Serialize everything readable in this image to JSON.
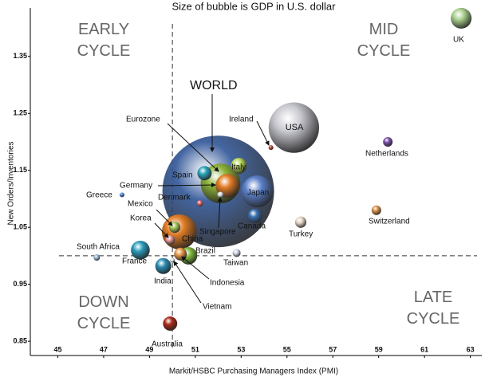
{
  "chart_data": {
    "type": "bubble",
    "title": "Size of bubble is GDP in U.S. dollar",
    "x_label": "Markit/HSBC Purchasing Managers Index (PMI)",
    "y_label": "New Orders/Inventories",
    "xlim": [
      43.8,
      63.5
    ],
    "ylim": [
      0.825,
      1.435
    ],
    "xticks": [
      45,
      47,
      49,
      51,
      53,
      55,
      57,
      59,
      61,
      63
    ],
    "yticks": [
      0.85,
      0.95,
      1.05,
      1.15,
      1.25,
      1.35
    ],
    "xline": 50,
    "yline": 1.0,
    "annotations": [
      "EARLY CYCLE",
      "MID CYCLE",
      "DOWN CYCLE",
      "LATE CYCLE"
    ],
    "highlight_label": "WORLD",
    "names": [
      "UK",
      "USA",
      "WORLD",
      "Netherlands",
      "Ireland",
      "Eurozone",
      "Italy",
      "Spain",
      "Germany",
      "Japan",
      "Singapore",
      "Denmark",
      "Canada",
      "Greece",
      "Switzerland",
      "Turkey",
      "China",
      "Mexico",
      "Korea",
      "Brazil",
      "France",
      "South Africa",
      "Taiwan",
      "India",
      "Indonesia",
      "Vietnam",
      "Australia"
    ],
    "x": [
      62.6,
      55.3,
      52.0,
      59.4,
      54.3,
      52.1,
      52.9,
      51.4,
      52.4,
      53.7,
      52.1,
      51.2,
      53.6,
      47.8,
      58.9,
      55.6,
      50.3,
      50.1,
      49.9,
      50.7,
      48.6,
      46.7,
      52.8,
      49.6,
      50.35,
      50.0,
      49.9
    ],
    "y": [
      1.417,
      1.225,
      1.113,
      1.2,
      1.19,
      1.127,
      1.158,
      1.145,
      1.123,
      1.113,
      1.107,
      1.092,
      1.07,
      1.107,
      1.08,
      1.059,
      1.042,
      1.05,
      1.028,
      1.0,
      1.01,
      0.997,
      1.005,
      0.982,
      1.003,
      0.992,
      0.881
    ],
    "sizes": [
      1.7,
      10,
      49,
      0.36,
      0.09,
      6.2,
      1.0,
      0.8,
      2.2,
      4.0,
      0.16,
      0.16,
      0.8,
      0.09,
      0.36,
      0.5,
      4.8,
      0.5,
      0.36,
      1.2,
      1.4,
      0.16,
      0.25,
      1.0,
      0.64,
      0.09,
      0.8
    ],
    "colors": [
      "#a8d08d",
      "#c8c8d0",
      "#2f5597",
      "#7b4fa8",
      "#c0392b",
      "#8db33a",
      "#b8d85a",
      "#2aa3b8",
      "#e07b24",
      "#5b7fc8",
      "#e0e0e0",
      "#e06a6a",
      "#3a6fb0",
      "#4a78c8",
      "#d9924a",
      "#e8d8c8",
      "#e07b24",
      "#a8c85a",
      "#e89a9a",
      "#7cb83a",
      "#2a9ab8",
      "#9ab8d8",
      "#d0d8e8",
      "#2a8ab0",
      "#e89a4a",
      "#e8e8e8",
      "#a82a1a"
    ]
  }
}
